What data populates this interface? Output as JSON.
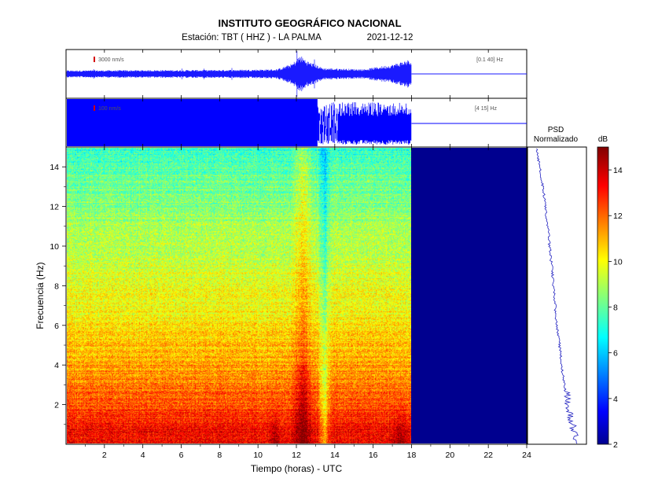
{
  "header": {
    "title": "INSTITUTO GEOGRÁFICO NACIONAL",
    "station": "Estación:  TBT ( HHZ ) - LA PALMA",
    "date": "2021-12-12"
  },
  "chart_data": [
    {
      "type": "line",
      "panel": "seismogram-broadband",
      "scale_label": "3000 nm/s",
      "filter_label": "[0.1 40]  Hz",
      "x_range_hours": [
        0,
        24
      ],
      "data_end_hour": 18,
      "envelope": [
        {
          "t": 0,
          "a": 0.15
        },
        {
          "t": 4,
          "a": 0.16
        },
        {
          "t": 8,
          "a": 0.17
        },
        {
          "t": 11,
          "a": 0.2
        },
        {
          "t": 11.8,
          "a": 0.45
        },
        {
          "t": 12.2,
          "a": 0.8
        },
        {
          "t": 12.6,
          "a": 0.55
        },
        {
          "t": 13.4,
          "a": 0.25
        },
        {
          "t": 15.5,
          "a": 0.2
        },
        {
          "t": 17,
          "a": 0.4
        },
        {
          "t": 17.8,
          "a": 0.6
        },
        {
          "t": 18,
          "a": 0.5
        }
      ]
    },
    {
      "type": "line",
      "panel": "seismogram-filtered",
      "scale_label": "100 nm/s",
      "filter_label": "[4 15]  Hz",
      "x_range_hours": [
        0,
        24
      ],
      "data_end_hour": 18,
      "saturated_until_hour": 13.1
    },
    {
      "type": "heatmap",
      "panel": "spectrogram",
      "xlabel": "Tiempo (horas) - UTC",
      "ylabel": "Frecuencia (Hz)",
      "xlim": [
        0,
        24
      ],
      "ylim": [
        0,
        15
      ],
      "xticks": [
        "2",
        "4",
        "6",
        "8",
        "10",
        "12",
        "14",
        "16",
        "18",
        "20",
        "22",
        "24"
      ],
      "yticks": [
        "2",
        "4",
        "6",
        "8",
        "10",
        "12",
        "14"
      ],
      "data_end_hour": 18,
      "colormap": "jet",
      "level_db_by_freq": [
        {
          "f": 0.5,
          "db": 13.5
        },
        {
          "f": 2,
          "db": 12.3
        },
        {
          "f": 4,
          "db": 11.3
        },
        {
          "f": 6,
          "db": 10.4
        },
        {
          "f": 8,
          "db": 9.8
        },
        {
          "f": 10,
          "db": 9.3
        },
        {
          "f": 12,
          "db": 8.6
        },
        {
          "f": 14,
          "db": 8.0
        },
        {
          "f": 15,
          "db": 7.6
        }
      ],
      "events": [
        {
          "t_start": 10.5,
          "t_end": 11.2,
          "f_max": 1.5,
          "boost_db": 1.5
        },
        {
          "t_start": 11.7,
          "t_end": 12.9,
          "f_max": 15,
          "boost_db": 2.0
        },
        {
          "t_start": 13.1,
          "t_end": 13.8,
          "f_max": 15,
          "boost_db": -2.5
        },
        {
          "t_start": 16.8,
          "t_end": 18,
          "f_max": 2,
          "boost_db": 1.5
        }
      ],
      "empty_fill_db": 2
    },
    {
      "type": "line",
      "panel": "psd",
      "title": "PSD\nNormalizado",
      "ylim": [
        0,
        15
      ],
      "psd": [
        {
          "f": 0.2,
          "v": 0.85
        },
        {
          "f": 1,
          "v": 0.78
        },
        {
          "f": 2,
          "v": 0.7
        },
        {
          "f": 3,
          "v": 0.62
        },
        {
          "f": 4,
          "v": 0.56
        },
        {
          "f": 5,
          "v": 0.52
        },
        {
          "f": 6,
          "v": 0.46
        },
        {
          "f": 8,
          "v": 0.4
        },
        {
          "f": 10,
          "v": 0.32
        },
        {
          "f": 12,
          "v": 0.24
        },
        {
          "f": 14,
          "v": 0.12
        },
        {
          "f": 15,
          "v": 0.06
        }
      ]
    },
    {
      "type": "heatmap",
      "panel": "colorbar",
      "label": "dB",
      "range": [
        2,
        15
      ],
      "ticks": [
        "2",
        "4",
        "6",
        "8",
        "10",
        "12",
        "14"
      ]
    }
  ]
}
